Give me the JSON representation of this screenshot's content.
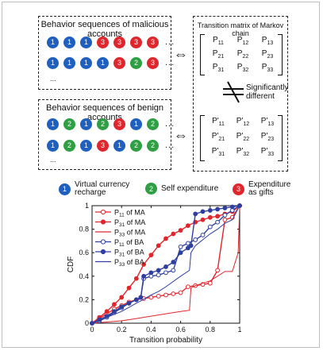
{
  "colors": {
    "blue": "#1f5fbf",
    "green": "#2ea043",
    "red": "#e0262d",
    "ma_red": "#e0262d",
    "ba_blue": "#2f3f9f"
  },
  "malicious_box": {
    "title": "Behavior sequences of malicious accounts",
    "rows": [
      [
        "1",
        "1",
        "1",
        "3",
        "3",
        "3",
        "3"
      ],
      [
        "1",
        "1",
        "1",
        "1",
        "3",
        "2",
        "3"
      ]
    ],
    "ellipsis": "...",
    "vellipsis": "..."
  },
  "benign_box": {
    "title": "Behavior sequences of benign accounts",
    "rows": [
      [
        "1",
        "2",
        "1",
        "2",
        "3",
        "1",
        "2"
      ],
      [
        "1",
        "2",
        "1",
        "3",
        "1",
        "2",
        "2"
      ]
    ],
    "ellipsis": "...",
    "vellipsis": "..."
  },
  "markov_box": {
    "title": "Transition matrix of Markov chain",
    "significance_label_1": "Significantly",
    "significance_label_2": "different",
    "top_matrix": [
      [
        "P",
        "11"
      ],
      [
        "P",
        "12"
      ],
      [
        "P",
        "13"
      ],
      [
        "P",
        "21"
      ],
      [
        "P",
        "22"
      ],
      [
        "P",
        "23"
      ],
      [
        "P",
        "31"
      ],
      [
        "P",
        "32"
      ],
      [
        "P",
        "33"
      ]
    ],
    "bottom_matrix": [
      [
        "P'",
        "11"
      ],
      [
        "P'",
        "12"
      ],
      [
        "P'",
        "13"
      ],
      [
        "P'",
        "21"
      ],
      [
        "P'",
        "22"
      ],
      [
        "P'",
        "23"
      ],
      [
        "P'",
        "31"
      ],
      [
        "P'",
        "32"
      ],
      [
        "P'",
        "33"
      ]
    ]
  },
  "legend": {
    "items": [
      {
        "num": "1",
        "label_1": "Virtual currency",
        "label_2": "recharge",
        "color": "blue"
      },
      {
        "num": "2",
        "label_1": "Self expenditure",
        "label_2": "",
        "color": "green"
      },
      {
        "num": "3",
        "label_1": "Expenditure",
        "label_2": "as gifts",
        "color": "red"
      }
    ]
  },
  "chart_data": {
    "type": "line",
    "xlabel": "Transition probability",
    "ylabel": "CDF",
    "xlim": [
      0,
      1
    ],
    "ylim": [
      0,
      1
    ],
    "xticks": [
      "0",
      "0.2",
      "0.4",
      "0.6",
      "0.8",
      "1"
    ],
    "yticks": [
      "0",
      "0.2",
      "0.4",
      "0.6",
      "0.8",
      "1"
    ],
    "legend_position": "top-left",
    "series": [
      {
        "name": "P11 of MA",
        "sub": "11",
        "label_pre": "P",
        "label_post": " of MA",
        "color": "#e0262d",
        "marker": "circle-open",
        "x": [
          0,
          0.05,
          0.1,
          0.15,
          0.2,
          0.25,
          0.3,
          0.35,
          0.4,
          0.45,
          0.5,
          0.55,
          0.6,
          0.65,
          0.7,
          0.75,
          0.8,
          0.85,
          0.9,
          0.95,
          1.0
        ],
        "y": [
          0,
          0.04,
          0.08,
          0.12,
          0.15,
          0.18,
          0.2,
          0.21,
          0.22,
          0.23,
          0.24,
          0.25,
          0.26,
          0.31,
          0.32,
          0.33,
          0.34,
          0.45,
          0.88,
          0.9,
          1.0
        ]
      },
      {
        "name": "P31 of MA",
        "sub": "31",
        "label_pre": "P",
        "label_post": " of MA",
        "color": "#e0262d",
        "marker": "circle-filled",
        "x": [
          0,
          0.05,
          0.1,
          0.15,
          0.2,
          0.25,
          0.3,
          0.35,
          0.4,
          0.45,
          0.5,
          0.55,
          0.6,
          0.65,
          0.7,
          0.75,
          0.8,
          0.85,
          0.9,
          0.95,
          1.0
        ],
        "y": [
          0,
          0.05,
          0.1,
          0.16,
          0.22,
          0.3,
          0.38,
          0.5,
          0.58,
          0.66,
          0.72,
          0.76,
          0.79,
          0.83,
          0.86,
          0.88,
          0.9,
          0.91,
          0.93,
          0.95,
          1.0
        ]
      },
      {
        "name": "P33 of MA",
        "sub": "33",
        "label_pre": "P",
        "label_post": " of MA",
        "color": "#e0262d",
        "marker": "none",
        "x": [
          0,
          0.1,
          0.2,
          0.3,
          0.4,
          0.45,
          0.5,
          0.6,
          0.66,
          0.67,
          0.7,
          0.8,
          0.9,
          0.95,
          0.99,
          1.0
        ],
        "y": [
          0,
          0.01,
          0.02,
          0.04,
          0.06,
          0.07,
          0.08,
          0.1,
          0.11,
          0.3,
          0.32,
          0.36,
          0.44,
          0.44,
          0.6,
          1.0
        ]
      },
      {
        "name": "P11 of BA",
        "sub": "11",
        "label_pre": "P",
        "label_post": " of BA",
        "color": "#2f3f9f",
        "marker": "circle-open",
        "x": [
          0,
          0.05,
          0.1,
          0.15,
          0.2,
          0.25,
          0.3,
          0.33,
          0.35,
          0.4,
          0.45,
          0.5,
          0.55,
          0.6,
          0.65,
          0.7,
          0.75,
          0.8,
          0.85,
          0.9,
          0.95,
          1.0
        ],
        "y": [
          0,
          0.02,
          0.05,
          0.09,
          0.13,
          0.17,
          0.2,
          0.22,
          0.38,
          0.4,
          0.41,
          0.43,
          0.45,
          0.65,
          0.68,
          0.71,
          0.75,
          0.82,
          0.86,
          0.92,
          0.96,
          1.0
        ]
      },
      {
        "name": "P31 of BA",
        "sub": "31",
        "label_pre": "P",
        "label_post": " of BA",
        "color": "#2f3f9f",
        "marker": "circle-filled",
        "x": [
          0,
          0.05,
          0.1,
          0.15,
          0.2,
          0.25,
          0.3,
          0.33,
          0.35,
          0.4,
          0.45,
          0.5,
          0.55,
          0.6,
          0.65,
          0.67,
          0.7,
          0.75,
          0.8,
          0.85,
          0.9,
          0.95,
          1.0
        ],
        "y": [
          0,
          0.03,
          0.06,
          0.1,
          0.14,
          0.17,
          0.2,
          0.22,
          0.4,
          0.43,
          0.45,
          0.48,
          0.52,
          0.6,
          0.64,
          0.66,
          0.93,
          0.95,
          0.96,
          0.97,
          0.98,
          0.99,
          1.0
        ]
      },
      {
        "name": "P33 of BA",
        "sub": "33",
        "label_pre": "P",
        "label_post": " of BA",
        "color": "#2f3f9f",
        "marker": "none",
        "x": [
          0,
          0.1,
          0.2,
          0.3,
          0.33,
          0.4,
          0.45,
          0.5,
          0.6,
          0.66,
          0.67,
          0.7,
          0.8,
          0.85,
          0.9,
          0.95,
          1.0
        ],
        "y": [
          0,
          0.05,
          0.1,
          0.17,
          0.19,
          0.24,
          0.27,
          0.31,
          0.4,
          0.45,
          0.6,
          0.66,
          0.76,
          0.8,
          0.85,
          0.88,
          1.0
        ]
      }
    ]
  }
}
